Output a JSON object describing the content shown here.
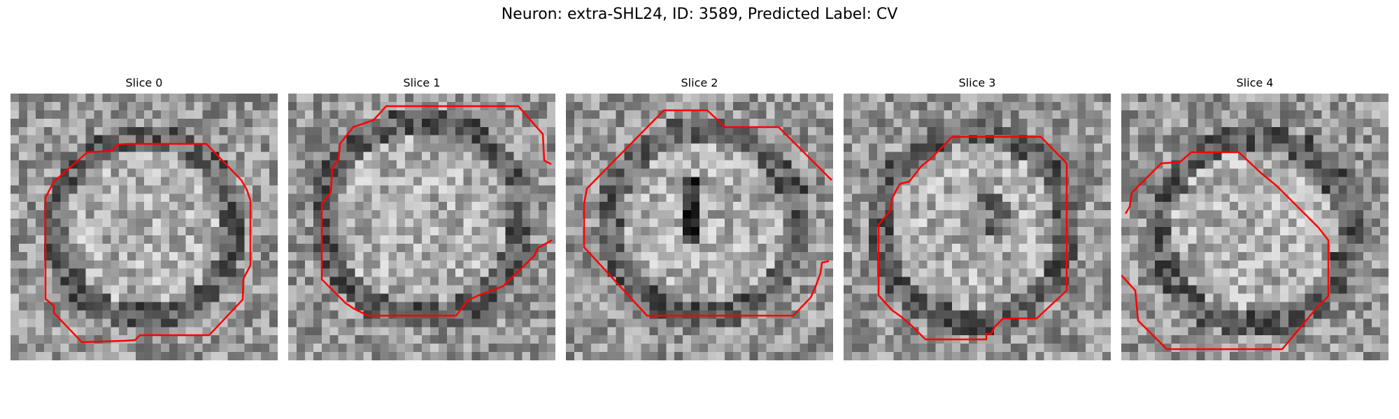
{
  "figure": {
    "title": "Neuron: extra-SHL24, ID: 3589, Predicted Label: CV",
    "contour_color": "#ff0000",
    "colormap": "grayscale"
  },
  "panels": [
    {
      "title": "Slice 0"
    },
    {
      "title": "Slice 1"
    },
    {
      "title": "Slice 2"
    },
    {
      "title": "Slice 3"
    },
    {
      "title": "Slice 4"
    }
  ]
}
